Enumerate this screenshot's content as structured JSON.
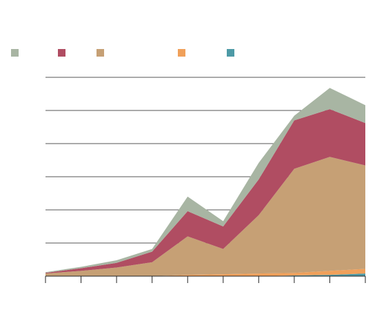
{
  "chart_data": {
    "type": "area",
    "stacked": true,
    "title": "",
    "xlabel": "",
    "ylabel": "",
    "x": [
      1,
      2,
      3,
      4,
      5,
      6,
      7,
      8,
      9,
      10
    ],
    "ylim": [
      0,
      300
    ],
    "y_gridlines": [
      0,
      50,
      100,
      150,
      200,
      250,
      300
    ],
    "grid": true,
    "legend_position": "top-left",
    "series": [
      {
        "color": "#4d9aa6",
        "values": [
          0,
          0,
          0,
          0,
          0,
          0,
          0,
          1,
          2,
          4
        ]
      },
      {
        "color": "#f0a05a",
        "values": [
          0,
          0,
          0,
          0,
          2,
          3,
          4,
          4,
          6,
          7
        ]
      },
      {
        "color": "#c6a075",
        "values": [
          4,
          8,
          13,
          21,
          58,
          38,
          88,
          157,
          172,
          156
        ]
      },
      {
        "color": "#b04d62",
        "values": [
          1,
          4,
          7,
          16,
          38,
          34,
          54,
          73,
          72,
          64
        ]
      },
      {
        "color": "#a8b5a3",
        "values": [
          1,
          2,
          4,
          4,
          22,
          8,
          25,
          7,
          32,
          27
        ]
      }
    ]
  }
}
